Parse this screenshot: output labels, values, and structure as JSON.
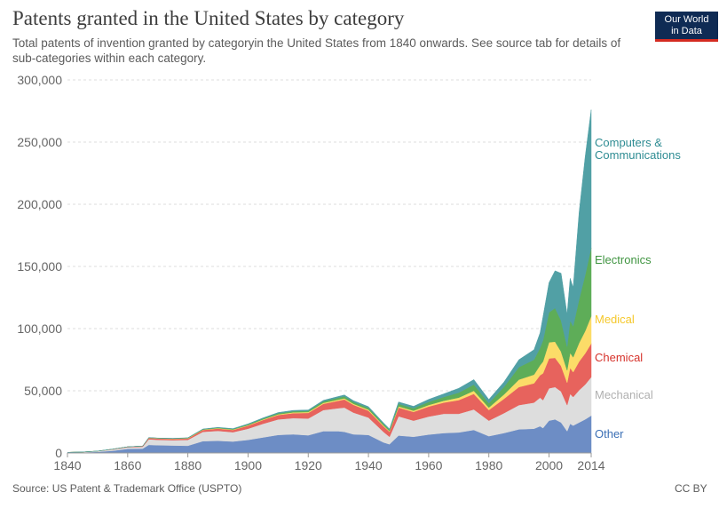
{
  "header": {
    "title": "Patents granted in the United States by category",
    "subtitle": "Total patents of invention granted by categoryin the United States from 1840 onwards. See source tab for details of sub-categories within each category.",
    "logo_line1": "Our World",
    "logo_line2": "in Data"
  },
  "footer": {
    "source": "Source: US Patent & Trademark Office (USPTO)",
    "license": "CC BY"
  },
  "chart_data": {
    "type": "area",
    "stacked": true,
    "title": "Patents granted in the United States by category",
    "xlabel": "",
    "ylabel": "",
    "xlim": [
      1840,
      2014
    ],
    "ylim": [
      0,
      300000
    ],
    "x_ticks": [
      "1840",
      "1860",
      "1880",
      "1900",
      "1920",
      "1940",
      "1960",
      "1980",
      "2000",
      "2014"
    ],
    "y_ticks": [
      "0",
      "50,000",
      "100,000",
      "150,000",
      "200,000",
      "250,000",
      "300,000"
    ],
    "y_tick_values": [
      0,
      50000,
      100000,
      150000,
      200000,
      250000,
      300000
    ],
    "grid": "horizontal dashed",
    "legend": "inline labels at right",
    "x": [
      1840,
      1845,
      1850,
      1855,
      1860,
      1865,
      1867,
      1870,
      1875,
      1880,
      1885,
      1890,
      1895,
      1900,
      1905,
      1910,
      1915,
      1920,
      1925,
      1930,
      1932,
      1935,
      1940,
      1945,
      1947,
      1950,
      1955,
      1960,
      1965,
      1970,
      1975,
      1980,
      1985,
      1990,
      1995,
      1997,
      1998,
      2000,
      2002,
      2004,
      2006,
      2007,
      2008,
      2010,
      2012,
      2014
    ],
    "series": [
      {
        "name": "Other",
        "color": "#6d8dc5",
        "values": [
          300,
          500,
          900,
          1800,
          3300,
          3500,
          6500,
          6200,
          6000,
          5800,
          9500,
          9800,
          9200,
          10500,
          12500,
          14500,
          15000,
          14200,
          17500,
          17500,
          17000,
          15000,
          14500,
          8500,
          7000,
          14000,
          13000,
          14800,
          16000,
          16500,
          18500,
          13500,
          16000,
          19000,
          19500,
          21500,
          20000,
          26000,
          27000,
          24500,
          17500,
          23500,
          22000,
          24500,
          27000,
          30000
        ]
      },
      {
        "name": "Mechanical",
        "color": "#dddddd",
        "values": [
          150,
          250,
          500,
          1000,
          1300,
          1500,
          4500,
          4400,
          4300,
          4700,
          7500,
          8000,
          7500,
          9000,
          11000,
          12500,
          13000,
          13500,
          17000,
          18500,
          19500,
          17500,
          14000,
          8500,
          6000,
          15500,
          13000,
          14500,
          15500,
          15000,
          16500,
          12500,
          16000,
          19500,
          21000,
          23000,
          22500,
          26000,
          26000,
          25000,
          21000,
          24000,
          23000,
          26000,
          28000,
          31000
        ]
      },
      {
        "name": "Chemical",
        "color": "#e7635d",
        "values": [
          20,
          50,
          100,
          200,
          300,
          500,
          1000,
          1000,
          1000,
          1100,
          1500,
          1800,
          1800,
          2400,
          3000,
          3500,
          4000,
          4500,
          5000,
          6000,
          6500,
          6200,
          5500,
          4500,
          4000,
          7000,
          7000,
          8000,
          9000,
          11000,
          12500,
          8500,
          11500,
          14500,
          15500,
          18000,
          21500,
          24000,
          23500,
          20500,
          18000,
          21000,
          20000,
          23000,
          25000,
          27000
        ]
      },
      {
        "name": "Medical",
        "color": "#fcdc68",
        "values": [
          5,
          10,
          20,
          40,
          60,
          100,
          200,
          200,
          200,
          250,
          300,
          350,
          350,
          450,
          500,
          600,
          650,
          700,
          800,
          900,
          950,
          900,
          850,
          700,
          600,
          1000,
          1000,
          1300,
          1500,
          2000,
          2500,
          2000,
          3500,
          6000,
          7000,
          8000,
          9500,
          13000,
          13000,
          11500,
          10000,
          12000,
          12000,
          15000,
          18000,
          22000
        ]
      },
      {
        "name": "Electronics",
        "color": "#5ead58",
        "values": [
          0,
          0,
          0,
          0,
          0,
          0,
          100,
          100,
          150,
          200,
          300,
          400,
          450,
          600,
          700,
          800,
          900,
          1000,
          1200,
          1500,
          1600,
          1500,
          1400,
          1200,
          1000,
          2000,
          2000,
          2500,
          3000,
          4000,
          5000,
          3500,
          6000,
          10000,
          12000,
          14000,
          17000,
          24000,
          27000,
          25000,
          19000,
          26000,
          25000,
          35000,
          45000,
          55000
        ]
      },
      {
        "name": "Computers & Communications",
        "color": "#51a0a5",
        "values": [
          0,
          0,
          0,
          0,
          0,
          0,
          100,
          100,
          120,
          150,
          200,
          250,
          300,
          400,
          500,
          600,
          650,
          700,
          800,
          1000,
          1100,
          1000,
          1000,
          800,
          700,
          1500,
          1500,
          2000,
          2500,
          3500,
          4000,
          3000,
          4000,
          6000,
          8000,
          12000,
          19000,
          24000,
          30000,
          38000,
          26000,
          34000,
          31000,
          70000,
          95000,
          111000
        ]
      }
    ]
  }
}
